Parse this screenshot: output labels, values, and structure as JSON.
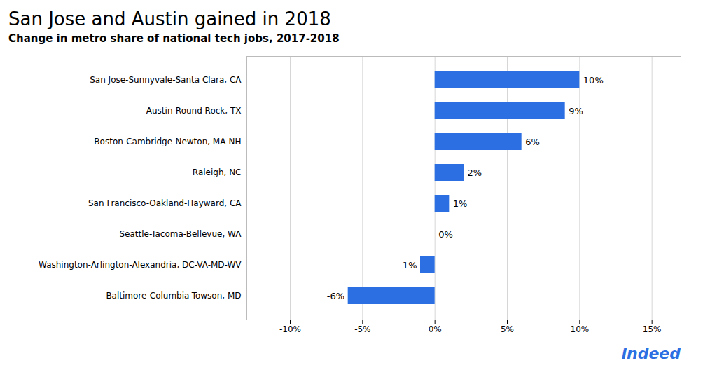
{
  "chart_data": {
    "type": "bar",
    "orientation": "horizontal",
    "title": "San Jose and Austin gained in 2018",
    "subtitle": "Change in metro share of national tech jobs, 2017-2018",
    "categories": [
      "Baltimore-Columbia-Towson, MD",
      "Washington-Arlington-Alexandria, DC-VA-MD-WV",
      "Seattle-Tacoma-Bellevue, WA",
      "San Francisco-Oakland-Hayward, CA",
      "Raleigh, NC",
      "Boston-Cambridge-Newton, MA-NH",
      "Austin-Round Rock, TX",
      "San Jose-Sunnyvale-Santa Clara, CA"
    ],
    "values": [
      -6,
      -1,
      0,
      1,
      2,
      6,
      9,
      10
    ],
    "value_labels": [
      "-6%",
      "-1%",
      "0%",
      "1%",
      "2%",
      "6%",
      "9%",
      "10%"
    ],
    "data_labels": true,
    "color": "#2B6FE3",
    "xlim": [
      -13,
      17
    ],
    "xticks": [
      {
        "value": -10,
        "label": "-10%"
      },
      {
        "value": -5,
        "label": "-5%"
      },
      {
        "value": 0,
        "label": "0%"
      },
      {
        "value": 5,
        "label": "5%"
      },
      {
        "value": 10,
        "label": "10%"
      },
      {
        "value": 15,
        "label": "15%"
      }
    ],
    "grid": true,
    "annotations": [
      {
        "text": "indeed",
        "color": "#2B6FE3"
      }
    ]
  }
}
